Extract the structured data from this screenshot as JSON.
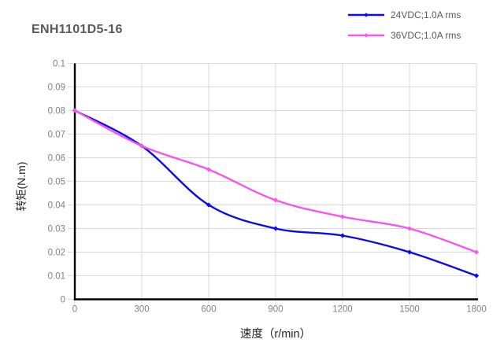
{
  "chart_data": {
    "type": "line",
    "title": "ENH1101D5-16",
    "xlabel": "速度（r/min）",
    "ylabel": "转矩(N.m)",
    "x": [
      0,
      300,
      600,
      900,
      1200,
      1500,
      1800
    ],
    "series": [
      {
        "name": "24VDC;1.0A rms",
        "color": "#0a0af0",
        "values": [
          0.08,
          0.065,
          0.04,
          0.03,
          0.027,
          0.02,
          0.01
        ]
      },
      {
        "name": "36VDC;1.0A rms",
        "color": "#f655ee",
        "values": [
          0.08,
          0.065,
          0.055,
          0.042,
          0.035,
          0.03,
          0.02
        ]
      }
    ],
    "xlim": [
      0,
      1800
    ],
    "ylim": [
      0,
      0.1
    ],
    "x_ticks": [
      0,
      300,
      600,
      900,
      1200,
      1500,
      1800
    ],
    "x_tick_labels": [
      "0",
      "300",
      "600",
      "900",
      "1200",
      "1500",
      "1800"
    ],
    "y_ticks": [
      0,
      0.01,
      0.02,
      0.03,
      0.04,
      0.05,
      0.06,
      0.07,
      0.08,
      0.09,
      0.1
    ],
    "y_tick_labels": [
      "0",
      "0.01",
      "0.02",
      "0.03",
      "0.04",
      "0.05",
      "0.06",
      "0.07",
      "0.08",
      "0.09",
      "0.1"
    ],
    "grid": true,
    "line_smoothing": true,
    "legend_position": "top-right",
    "colors": {
      "background": "#ffffff",
      "grid": "#d9d9d9",
      "tick": "#d9d9d9",
      "spine": "#000000",
      "tick_label": "#808080",
      "axis_label": "#262626",
      "title": "#595959",
      "legend_text": "#595959"
    }
  }
}
